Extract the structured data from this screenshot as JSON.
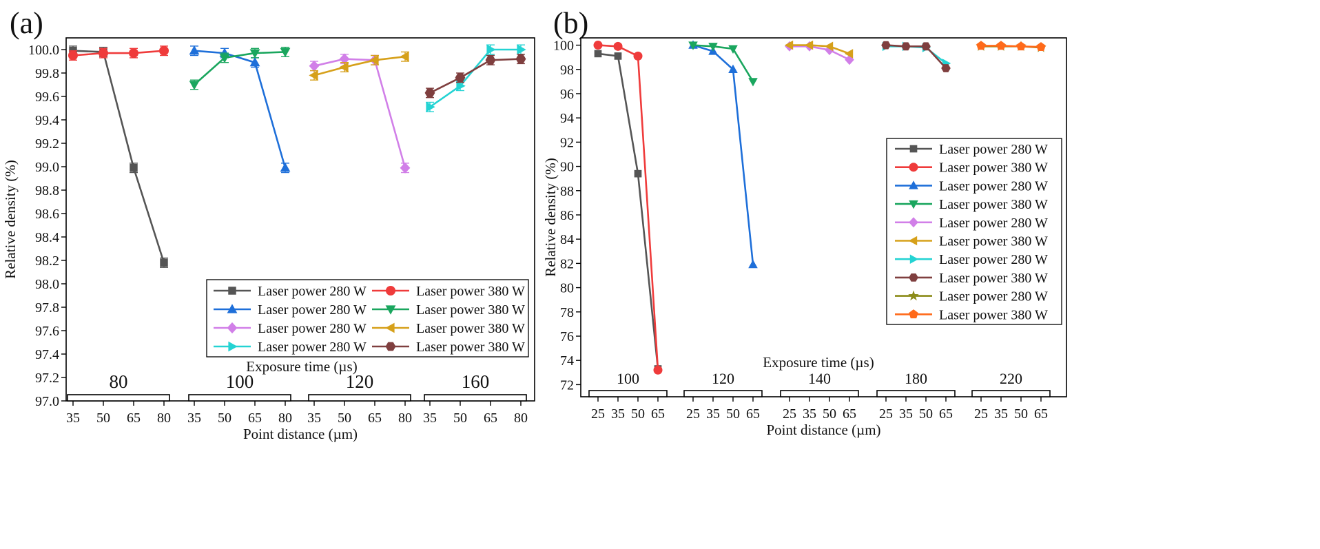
{
  "figure_panels": [
    "(a)",
    "(b)"
  ],
  "colors": {
    "c280a": "#555555",
    "c380a": "#ef3b3b",
    "c280b": "#1e6fd9",
    "c380b": "#1aa65e",
    "c280c": "#d17fe8",
    "c380c": "#d6a01a",
    "c280d": "#24d3d3",
    "c380d": "#7f3f3f",
    "c280e": "#8c8c1a",
    "c380e": "#ff6a1a"
  },
  "chart_data": [
    {
      "type": "line",
      "panel": "(a)",
      "xlabel": "Point distance (µm)",
      "ylabel": "Relative density (%)",
      "group_title": "Exposure time (µs)",
      "ylim": [
        97.0,
        100.1
      ],
      "yticks": [
        "97.0",
        "97.2",
        "97.4",
        "97.6",
        "97.8",
        "98.0",
        "98.2",
        "98.4",
        "98.6",
        "98.8",
        "99.0",
        "99.2",
        "99.4",
        "99.6",
        "99.8",
        "100.0"
      ],
      "groups": [
        {
          "label": "80",
          "categories": [
            "35",
            "50",
            "65",
            "80"
          ]
        },
        {
          "label": "100",
          "categories": [
            "35",
            "50",
            "65",
            "80"
          ]
        },
        {
          "label": "120",
          "categories": [
            "35",
            "50",
            "65",
            "80"
          ]
        },
        {
          "label": "160",
          "categories": [
            "35",
            "50",
            "65",
            "80"
          ]
        }
      ],
      "legend_position": "bottom-right",
      "legend_cols": 2,
      "series": [
        {
          "name": "Laser power 280 W",
          "group": 0,
          "marker": "square",
          "color": "#555555",
          "values": [
            99.99,
            99.98,
            98.99,
            98.18
          ],
          "error": 0.04
        },
        {
          "name": "Laser power 380 W",
          "group": 0,
          "marker": "circle",
          "color": "#ef3b3b",
          "values": [
            99.95,
            99.97,
            99.97,
            99.99
          ],
          "error": 0.04
        },
        {
          "name": "Laser power 280 W",
          "group": 1,
          "marker": "tri-up",
          "color": "#1e6fd9",
          "values": [
            99.99,
            99.97,
            99.89,
            98.99
          ],
          "error": 0.04
        },
        {
          "name": "Laser power 380 W",
          "group": 1,
          "marker": "tri-down",
          "color": "#1aa65e",
          "values": [
            99.7,
            99.93,
            99.97,
            99.98
          ],
          "error": 0.04
        },
        {
          "name": "Laser power 280 W",
          "group": 2,
          "marker": "diamond",
          "color": "#d17fe8",
          "values": [
            99.86,
            99.92,
            99.91,
            98.99
          ],
          "error": 0.04
        },
        {
          "name": "Laser power 380 W",
          "group": 2,
          "marker": "tri-left",
          "color": "#d6a01a",
          "values": [
            99.78,
            99.85,
            99.91,
            99.94
          ],
          "error": 0.04
        },
        {
          "name": "Laser power 280 W",
          "group": 3,
          "marker": "tri-right",
          "color": "#24d3d3",
          "values": [
            99.51,
            99.69,
            100.0,
            100.0
          ],
          "error": 0.04
        },
        {
          "name": "Laser power 380 W",
          "group": 3,
          "marker": "hexagon",
          "color": "#7f3f3f",
          "values": [
            99.63,
            99.76,
            99.91,
            99.92
          ],
          "error": 0.04
        }
      ]
    },
    {
      "type": "line",
      "panel": "(b)",
      "xlabel": "Point distance (µm)",
      "ylabel": "Relative density (%)",
      "group_title": "Exposure time (µs)",
      "ylim": [
        71,
        100.6
      ],
      "yticks": [
        "72",
        "74",
        "76",
        "78",
        "80",
        "82",
        "84",
        "86",
        "88",
        "90",
        "92",
        "94",
        "96",
        "98",
        "100"
      ],
      "groups": [
        {
          "label": "100",
          "categories": [
            "25",
            "35",
            "50",
            "65"
          ]
        },
        {
          "label": "120",
          "categories": [
            "25",
            "35",
            "50",
            "65"
          ]
        },
        {
          "label": "140",
          "categories": [
            "25",
            "35",
            "50",
            "65"
          ]
        },
        {
          "label": "180",
          "categories": [
            "25",
            "35",
            "50",
            "65"
          ]
        },
        {
          "label": "220",
          "categories": [
            "25",
            "35",
            "50",
            "65"
          ]
        }
      ],
      "legend_position": "right",
      "legend_cols": 1,
      "series": [
        {
          "name": "Laser power 280 W",
          "group": 0,
          "marker": "square",
          "color": "#555555",
          "values": [
            99.3,
            99.1,
            89.4,
            73.3
          ]
        },
        {
          "name": "Laser power 380 W",
          "group": 0,
          "marker": "circle",
          "color": "#ef3b3b",
          "values": [
            100.0,
            99.9,
            99.1,
            73.2
          ]
        },
        {
          "name": "Laser power 280 W",
          "group": 1,
          "marker": "tri-up",
          "color": "#1e6fd9",
          "values": [
            100.0,
            99.5,
            98.0,
            81.9
          ]
        },
        {
          "name": "Laser power 380 W",
          "group": 1,
          "marker": "tri-down",
          "color": "#1aa65e",
          "values": [
            100.0,
            99.9,
            99.7,
            97.0
          ]
        },
        {
          "name": "Laser power 280 W",
          "group": 2,
          "marker": "diamond",
          "color": "#d17fe8",
          "values": [
            99.9,
            99.9,
            99.6,
            98.8
          ]
        },
        {
          "name": "Laser power 380 W",
          "group": 2,
          "marker": "tri-left",
          "color": "#d6a01a",
          "values": [
            100.0,
            100.0,
            99.9,
            99.3
          ]
        },
        {
          "name": "Laser power 280 W",
          "group": 3,
          "marker": "tri-right",
          "color": "#24d3d3",
          "values": [
            99.9,
            99.9,
            99.8,
            98.5
          ]
        },
        {
          "name": "Laser power 380 W",
          "group": 3,
          "marker": "hexagon",
          "color": "#7f3f3f",
          "values": [
            100.0,
            99.9,
            99.9,
            98.1
          ]
        },
        {
          "name": "Laser power 280 W",
          "group": 4,
          "marker": "star",
          "color": "#8c8c1a",
          "values": [
            99.9,
            99.9,
            99.9,
            99.8
          ]
        },
        {
          "name": "Laser power 380 W",
          "group": 4,
          "marker": "pentagon",
          "color": "#ff6a1a",
          "values": [
            99.95,
            99.95,
            99.9,
            99.85
          ]
        }
      ]
    }
  ]
}
